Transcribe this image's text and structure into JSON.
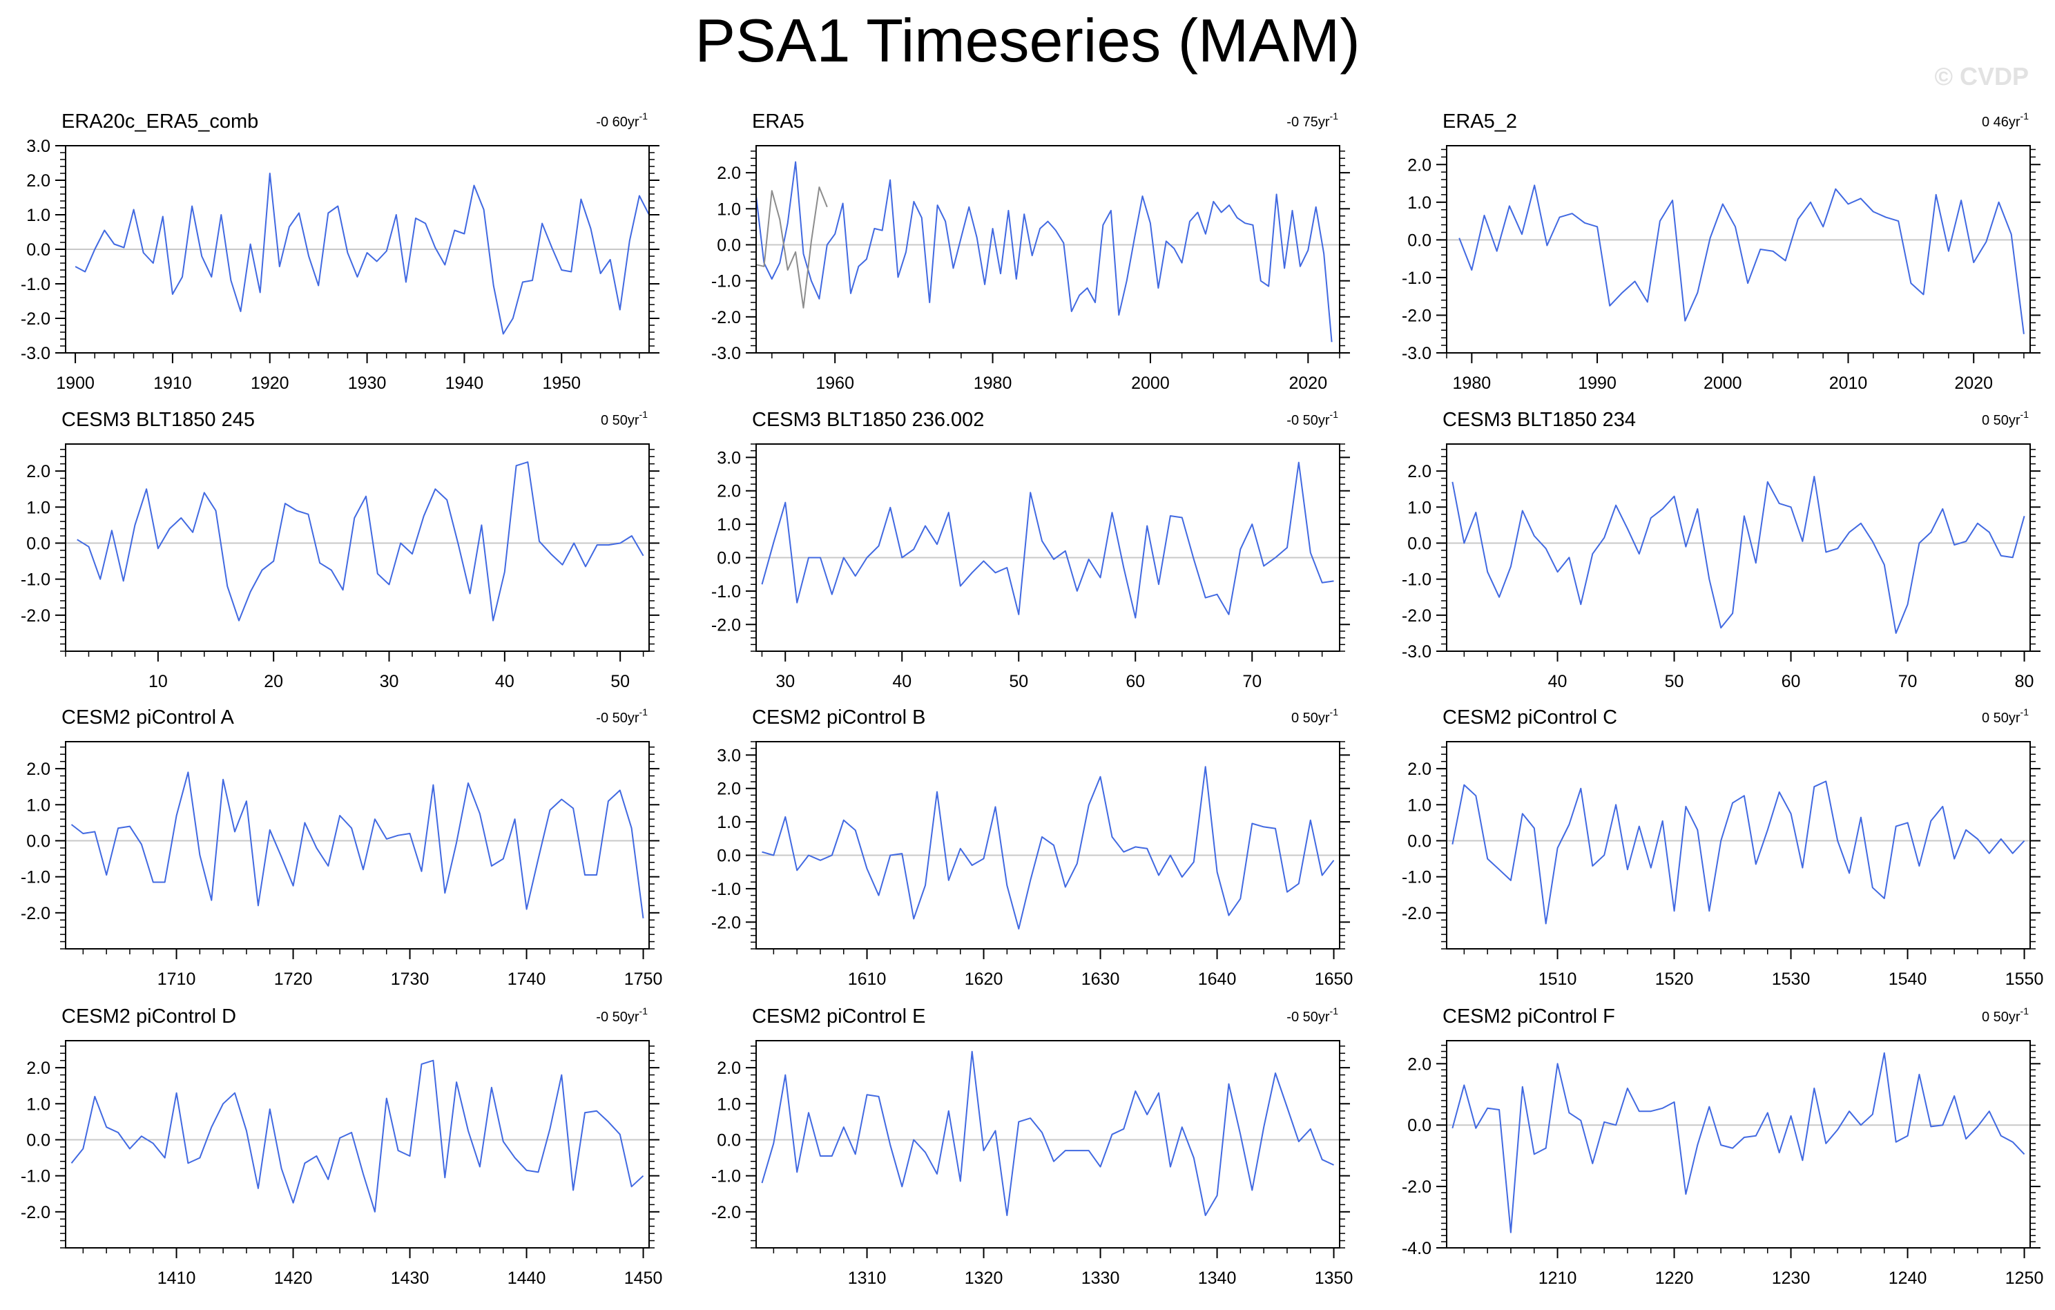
{
  "figure": {
    "title": "PSA1 Timeseries (MAM)",
    "watermark": "© CVDP"
  },
  "colors": {
    "line": "#4169e1",
    "secondary": "#8c8c8c",
    "zero": "#c8c8c8",
    "axis": "#000000"
  },
  "chart_data": [
    {
      "type": "line",
      "title": "ERA20c_ERA5_comb",
      "trend_label": "-0 60yr",
      "trend_exp": "-1",
      "xlim": [
        1899,
        1959
      ],
      "ylim": [
        -3,
        3
      ],
      "xticks": [
        1900,
        1910,
        1920,
        1930,
        1940,
        1950
      ],
      "yticks": [
        -3,
        -2,
        -1,
        0,
        1,
        2,
        3
      ],
      "yticklabels": [
        "-3.0",
        "-2.0",
        "-1.0",
        "0.0",
        "1.0",
        "2.0",
        "3.0"
      ],
      "x_start": 1900,
      "series": [
        {
          "name": "PSA1",
          "values": [
            -0.5,
            -0.65,
            0.0,
            0.55,
            0.15,
            0.05,
            1.15,
            -0.1,
            -0.4,
            0.95,
            -1.3,
            -0.8,
            1.25,
            -0.2,
            -0.8,
            1.0,
            -0.9,
            -1.8,
            0.15,
            -1.25,
            2.2,
            -0.5,
            0.65,
            1.05,
            -0.2,
            -1.05,
            1.05,
            1.25,
            -0.1,
            -0.8,
            -0.1,
            -0.35,
            -0.05,
            1.0,
            -0.95,
            0.9,
            0.75,
            0.05,
            -0.45,
            0.55,
            0.45,
            1.85,
            1.15,
            -1.05,
            -2.45,
            -2.0,
            -0.95,
            -0.9,
            0.75,
            0.05,
            -0.6,
            -0.65,
            1.45,
            0.6,
            -0.7,
            -0.3,
            -1.75,
            0.25,
            1.55,
            1.0
          ]
        }
      ]
    },
    {
      "type": "line",
      "title": "ERA5",
      "trend_label": "-0 75yr",
      "trend_exp": "-1",
      "xlim": [
        1950,
        2024
      ],
      "ylim": [
        -3,
        2.75
      ],
      "xticks": [
        1960,
        1980,
        2000,
        2020
      ],
      "yticks": [
        -3,
        -2,
        -1,
        0,
        1,
        2
      ],
      "yticklabels": [
        "-3.0",
        "-2.0",
        "-1.0",
        "0.0",
        "1.0",
        "2.0"
      ],
      "x_start": 1950,
      "series": [
        {
          "name": "ERA5",
          "values": [
            1.35,
            -0.5,
            -0.95,
            -0.5,
            0.6,
            2.3,
            -0.25,
            -1.0,
            -1.5,
            0.0,
            0.3,
            1.15,
            -1.35,
            -0.6,
            -0.4,
            0.45,
            0.4,
            1.8,
            -0.9,
            -0.2,
            1.2,
            0.75,
            -1.6,
            1.1,
            0.65,
            -0.65,
            0.2,
            1.05,
            0.2,
            -1.1,
            0.45,
            -0.8,
            0.95,
            -0.95,
            0.85,
            -0.3,
            0.45,
            0.65,
            0.4,
            0.05,
            -1.85,
            -1.4,
            -1.2,
            -1.6,
            0.55,
            0.95,
            -1.95,
            -1.0,
            0.2,
            1.35,
            0.6,
            -1.2,
            0.1,
            -0.1,
            -0.5,
            0.65,
            0.9,
            0.3,
            1.2,
            0.9,
            1.1,
            0.75,
            0.6,
            0.55,
            -1.0,
            -1.15,
            1.4,
            -0.65,
            0.95,
            -0.6,
            -0.15,
            1.05,
            -0.25,
            -2.7
          ]
        },
        {
          "name": "secondary",
          "values": [
            -0.55,
            -0.6,
            1.5,
            0.7,
            -0.7,
            -0.2,
            -1.75,
            0.1,
            1.6,
            1.05
          ]
        }
      ]
    },
    {
      "type": "line",
      "title": "ERA5_2",
      "trend_label": "0 46yr",
      "trend_exp": "-1",
      "xlim": [
        1978,
        2024.5
      ],
      "ylim": [
        -3,
        2.5
      ],
      "xticks": [
        1980,
        1990,
        2000,
        2010,
        2020
      ],
      "yticks": [
        -3,
        -2,
        -1,
        0,
        1,
        2
      ],
      "yticklabels": [
        "-3.0",
        "-2.0",
        "-1.0",
        "0.0",
        "1.0",
        "2.0"
      ],
      "x_start": 1979,
      "series": [
        {
          "name": "PSA1",
          "values": [
            0.05,
            -0.8,
            0.65,
            -0.3,
            0.9,
            0.15,
            1.45,
            -0.15,
            0.6,
            0.7,
            0.45,
            0.35,
            -1.75,
            -1.4,
            -1.1,
            -1.65,
            0.5,
            1.05,
            -2.15,
            -1.4,
            0.05,
            0.95,
            0.35,
            -1.15,
            -0.25,
            -0.3,
            -0.55,
            0.55,
            1.0,
            0.35,
            1.35,
            0.95,
            1.1,
            0.75,
            0.6,
            0.5,
            -1.15,
            -1.45,
            1.2,
            -0.3,
            1.05,
            -0.6,
            -0.05,
            1.0,
            0.15,
            -2.5
          ]
        }
      ]
    },
    {
      "type": "line",
      "title": "CESM3 BLT1850 245",
      "trend_label": "0 50yr",
      "trend_exp": "-1",
      "xlim": [
        2,
        52.5
      ],
      "ylim": [
        -3,
        2.75
      ],
      "xticks": [
        10,
        20,
        30,
        40,
        50
      ],
      "yticks": [
        -2,
        -1,
        0,
        1,
        2
      ],
      "yticklabels": [
        "-2.0",
        "-1.0",
        "0.0",
        "1.0",
        "2.0"
      ],
      "x_start": 3,
      "series": [
        {
          "name": "PSA1",
          "values": [
            0.1,
            -0.1,
            -1.0,
            0.35,
            -1.05,
            0.5,
            1.5,
            -0.15,
            0.4,
            0.7,
            0.3,
            1.4,
            0.9,
            -1.2,
            -2.15,
            -1.35,
            -0.75,
            -0.5,
            1.1,
            0.9,
            0.8,
            -0.55,
            -0.75,
            -1.3,
            0.7,
            1.3,
            -0.85,
            -1.15,
            0.0,
            -0.3,
            0.75,
            1.5,
            1.2,
            -0.05,
            -1.4,
            0.5,
            -2.15,
            -0.8,
            2.15,
            2.25,
            0.05,
            -0.3,
            -0.6,
            0.0,
            -0.65,
            -0.05,
            -0.05,
            0.0,
            0.2,
            -0.35
          ]
        }
      ]
    },
    {
      "type": "line",
      "title": "CESM3 BLT1850 236.002",
      "trend_label": "-0 50yr",
      "trend_exp": "-1",
      "xlim": [
        27.5,
        77.5
      ],
      "ylim": [
        -2.8,
        3.4
      ],
      "xticks": [
        30,
        40,
        50,
        60,
        70
      ],
      "yticks": [
        -2,
        -1,
        0,
        1,
        2,
        3
      ],
      "yticklabels": [
        "-2.0",
        "-1.0",
        "0.0",
        "1.0",
        "2.0",
        "3.0"
      ],
      "x_start": 28,
      "series": [
        {
          "name": "PSA1",
          "values": [
            -0.8,
            0.45,
            1.65,
            -1.35,
            0.0,
            0.0,
            -1.1,
            0.0,
            -0.55,
            0.0,
            0.35,
            1.5,
            0.0,
            0.25,
            0.95,
            0.4,
            1.35,
            -0.85,
            -0.45,
            -0.1,
            -0.45,
            -0.3,
            -1.7,
            1.95,
            0.5,
            -0.05,
            0.2,
            -1.0,
            -0.05,
            -0.6,
            1.35,
            -0.3,
            -1.8,
            0.95,
            -0.8,
            1.25,
            1.2,
            -0.05,
            -1.2,
            -1.1,
            -1.7,
            0.25,
            1.0,
            -0.25,
            0.0,
            0.3,
            2.85,
            0.15,
            -0.75,
            -0.7
          ]
        }
      ]
    },
    {
      "type": "line",
      "title": "CESM3 BLT1850 234",
      "trend_label": "0 50yr",
      "trend_exp": "-1",
      "xlim": [
        30.5,
        80.5
      ],
      "ylim": [
        -3,
        2.75
      ],
      "xticks": [
        40,
        50,
        60,
        70,
        80
      ],
      "yticks": [
        -3,
        -2,
        -1,
        0,
        1,
        2
      ],
      "yticklabels": [
        "-3.0",
        "-2.0",
        "-1.0",
        "0.0",
        "1.0",
        "2.0"
      ],
      "x_start": 31,
      "series": [
        {
          "name": "PSA1",
          "values": [
            1.7,
            0.0,
            0.85,
            -0.8,
            -1.5,
            -0.65,
            0.9,
            0.2,
            -0.15,
            -0.8,
            -0.4,
            -1.7,
            -0.3,
            0.15,
            1.05,
            0.4,
            -0.3,
            0.7,
            0.95,
            1.3,
            -0.1,
            0.95,
            -1.0,
            -2.35,
            -1.95,
            0.75,
            -0.55,
            1.7,
            1.1,
            1.0,
            0.05,
            1.85,
            -0.25,
            -0.15,
            0.3,
            0.55,
            0.05,
            -0.6,
            -2.5,
            -1.7,
            0.0,
            0.3,
            0.95,
            -0.05,
            0.05,
            0.55,
            0.3,
            -0.35,
            -0.4,
            0.75
          ]
        }
      ]
    },
    {
      "type": "line",
      "title": "CESM2 piControl A",
      "trend_label": "-0 50yr",
      "trend_exp": "-1",
      "xlim": [
        1700.5,
        1750.5
      ],
      "ylim": [
        -3,
        2.75
      ],
      "xticks": [
        1710,
        1720,
        1730,
        1740,
        1750
      ],
      "yticks": [
        -2,
        -1,
        0,
        1,
        2
      ],
      "yticklabels": [
        "-2.0",
        "-1.0",
        "0.0",
        "1.0",
        "2.0"
      ],
      "x_start": 1701,
      "series": [
        {
          "name": "PSA1",
          "values": [
            0.45,
            0.2,
            0.25,
            -0.95,
            0.35,
            0.4,
            -0.1,
            -1.15,
            -1.15,
            0.7,
            1.9,
            -0.4,
            -1.65,
            1.7,
            0.25,
            1.1,
            -1.8,
            0.3,
            -0.45,
            -1.25,
            0.5,
            -0.2,
            -0.7,
            0.7,
            0.35,
            -0.8,
            0.6,
            0.05,
            0.15,
            0.2,
            -0.85,
            1.55,
            -1.45,
            -0.05,
            1.6,
            0.75,
            -0.7,
            -0.5,
            0.6,
            -1.9,
            -0.5,
            0.85,
            1.15,
            0.9,
            -0.95,
            -0.95,
            1.1,
            1.4,
            0.35,
            -2.15
          ]
        }
      ]
    },
    {
      "type": "line",
      "title": "CESM2 piControl B",
      "trend_label": "0 50yr",
      "trend_exp": "-1",
      "xlim": [
        1600.5,
        1650.5
      ],
      "ylim": [
        -2.8,
        3.4
      ],
      "xticks": [
        1610,
        1620,
        1630,
        1640,
        1650
      ],
      "yticks": [
        -2,
        -1,
        0,
        1,
        2,
        3
      ],
      "yticklabels": [
        "-2.0",
        "-1.0",
        "0.0",
        "1.0",
        "2.0",
        "3.0"
      ],
      "x_start": 1601,
      "series": [
        {
          "name": "PSA1",
          "values": [
            0.1,
            0.0,
            1.15,
            -0.45,
            0.0,
            -0.15,
            0.0,
            1.05,
            0.75,
            -0.4,
            -1.2,
            0.0,
            0.05,
            -1.9,
            -0.9,
            1.9,
            -0.75,
            0.2,
            -0.3,
            -0.1,
            1.45,
            -0.9,
            -2.2,
            -0.75,
            0.55,
            0.3,
            -0.95,
            -0.25,
            1.5,
            2.35,
            0.55,
            0.1,
            0.25,
            0.2,
            -0.6,
            0.0,
            -0.65,
            -0.2,
            2.65,
            -0.5,
            -1.8,
            -1.3,
            0.95,
            0.85,
            0.8,
            -1.1,
            -0.85,
            1.05,
            -0.6,
            -0.15
          ]
        }
      ]
    },
    {
      "type": "line",
      "title": "CESM2 piControl C",
      "trend_label": "0 50yr",
      "trend_exp": "-1",
      "xlim": [
        1500.5,
        1550.5
      ],
      "ylim": [
        -3,
        2.75
      ],
      "xticks": [
        1510,
        1520,
        1530,
        1540,
        1550
      ],
      "yticks": [
        -2,
        -1,
        0,
        1,
        2
      ],
      "yticklabels": [
        "-2.0",
        "-1.0",
        "0.0",
        "1.0",
        "2.0"
      ],
      "x_start": 1501,
      "series": [
        {
          "name": "PSA1",
          "values": [
            -0.1,
            1.55,
            1.25,
            -0.5,
            -0.8,
            -1.1,
            0.75,
            0.35,
            -2.3,
            -0.2,
            0.45,
            1.45,
            -0.7,
            -0.4,
            1.0,
            -0.8,
            0.4,
            -0.75,
            0.55,
            -1.95,
            0.95,
            0.3,
            -1.95,
            0.0,
            1.05,
            1.25,
            -0.65,
            0.3,
            1.35,
            0.75,
            -0.75,
            1.5,
            1.65,
            0.0,
            -0.9,
            0.65,
            -1.3,
            -1.6,
            0.4,
            0.5,
            -0.7,
            0.55,
            0.95,
            -0.5,
            0.3,
            0.05,
            -0.35,
            0.05,
            -0.35,
            0.0
          ]
        }
      ]
    },
    {
      "type": "line",
      "title": "CESM2 piControl D",
      "trend_label": "-0 50yr",
      "trend_exp": "-1",
      "xlim": [
        1400.5,
        1450.5
      ],
      "ylim": [
        -3,
        2.75
      ],
      "xticks": [
        1410,
        1420,
        1430,
        1440,
        1450
      ],
      "yticks": [
        -2,
        -1,
        0,
        1,
        2
      ],
      "yticklabels": [
        "-2.0",
        "-1.0",
        "0.0",
        "1.0",
        "2.0"
      ],
      "x_start": 1401,
      "series": [
        {
          "name": "PSA1",
          "values": [
            -0.65,
            -0.25,
            1.2,
            0.35,
            0.2,
            -0.25,
            0.1,
            -0.1,
            -0.5,
            1.3,
            -0.65,
            -0.5,
            0.35,
            1.0,
            1.3,
            0.25,
            -1.35,
            0.85,
            -0.8,
            -1.75,
            -0.65,
            -0.45,
            -1.1,
            0.05,
            0.2,
            -0.95,
            -2.0,
            1.15,
            -0.3,
            -0.45,
            2.1,
            2.2,
            -1.05,
            1.6,
            0.25,
            -0.75,
            1.45,
            -0.05,
            -0.5,
            -0.85,
            -0.9,
            0.3,
            1.8,
            -1.4,
            0.75,
            0.8,
            0.5,
            0.15,
            -1.3,
            -1.0
          ]
        }
      ]
    },
    {
      "type": "line",
      "title": "CESM2 piControl E",
      "trend_label": "-0 50yr",
      "trend_exp": "-1",
      "xlim": [
        1300.5,
        1350.5
      ],
      "ylim": [
        -3,
        2.75
      ],
      "xticks": [
        1310,
        1320,
        1330,
        1340,
        1350
      ],
      "yticks": [
        -2,
        -1,
        0,
        1,
        2
      ],
      "yticklabels": [
        "-2.0",
        "-1.0",
        "0.0",
        "1.0",
        "2.0"
      ],
      "x_start": 1301,
      "series": [
        {
          "name": "PSA1",
          "values": [
            -1.2,
            -0.1,
            1.8,
            -0.9,
            0.75,
            -0.45,
            -0.45,
            0.35,
            -0.4,
            1.25,
            1.2,
            -0.15,
            -1.3,
            0.0,
            -0.35,
            -0.95,
            0.8,
            -1.15,
            2.45,
            -0.3,
            0.25,
            -2.1,
            0.5,
            0.6,
            0.2,
            -0.6,
            -0.3,
            -0.3,
            -0.3,
            -0.75,
            0.15,
            0.3,
            1.35,
            0.7,
            1.3,
            -0.75,
            0.35,
            -0.5,
            -2.1,
            -1.55,
            1.55,
            0.15,
            -1.4,
            0.35,
            1.85,
            0.9,
            -0.05,
            0.3,
            -0.55,
            -0.7
          ]
        }
      ]
    },
    {
      "type": "line",
      "title": "CESM2 piControl F",
      "trend_label": "0 50yr",
      "trend_exp": "-1",
      "xlim": [
        1200.5,
        1250.5
      ],
      "ylim": [
        -4,
        2.75
      ],
      "xticks": [
        1210,
        1220,
        1230,
        1240,
        1250
      ],
      "yticks": [
        -4,
        -2,
        0,
        2
      ],
      "yticklabels": [
        "-4.0",
        "-2.0",
        "0.0",
        "2.0"
      ],
      "x_start": 1201,
      "series": [
        {
          "name": "PSA1",
          "values": [
            -0.1,
            1.3,
            -0.1,
            0.55,
            0.5,
            -3.5,
            1.25,
            -0.95,
            -0.75,
            2.0,
            0.4,
            0.15,
            -1.25,
            0.1,
            0.0,
            1.2,
            0.45,
            0.45,
            0.55,
            0.75,
            -2.25,
            -0.65,
            0.6,
            -0.65,
            -0.75,
            -0.4,
            -0.35,
            0.4,
            -0.9,
            0.3,
            -1.15,
            1.2,
            -0.6,
            -0.15,
            0.45,
            0.0,
            0.35,
            2.35,
            -0.55,
            -0.35,
            1.65,
            -0.05,
            0.0,
            0.95,
            -0.45,
            -0.05,
            0.45,
            -0.35,
            -0.55,
            -0.95
          ]
        }
      ]
    }
  ]
}
